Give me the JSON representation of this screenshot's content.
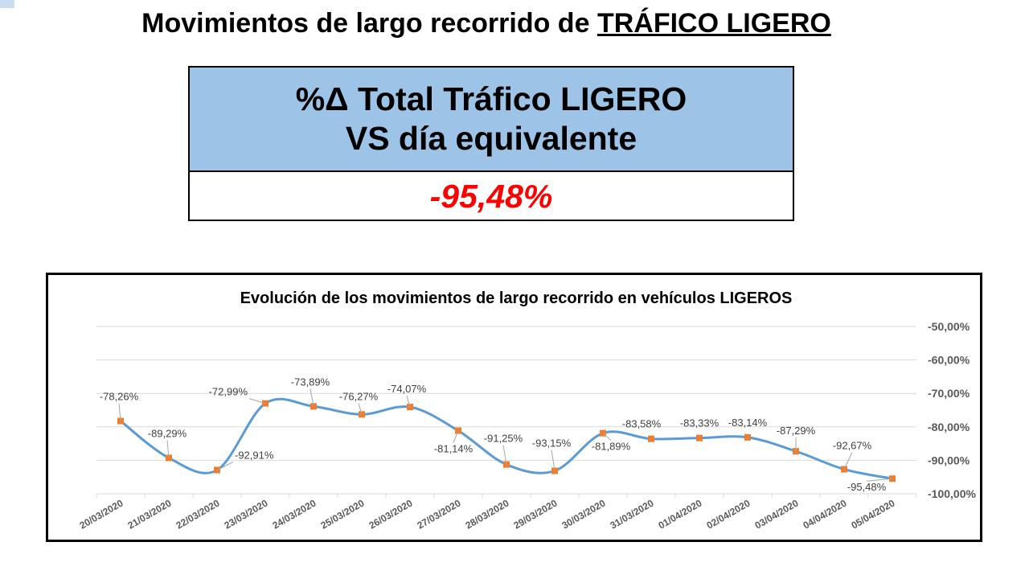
{
  "header": {
    "title_prefix": "Movimientos de largo recorrido de ",
    "title_emph": "TRÁFICO LIGERO"
  },
  "kpi": {
    "label_line1": "%Δ Total Tráfico LIGERO",
    "label_line2": "VS día equivalente",
    "value": "-95,48%",
    "header_color": "#9dc3e6",
    "value_color": "#ff0000"
  },
  "chart_data": {
    "type": "line",
    "title": "Evolución de los movimientos de largo recorrido en vehículos LIGEROS",
    "categories": [
      "20/03/2020",
      "21/03/2020",
      "22/03/2020",
      "23/03/2020",
      "24/03/2020",
      "25/03/2020",
      "26/03/2020",
      "27/03/2020",
      "28/03/2020",
      "29/03/2020",
      "30/03/2020",
      "31/03/2020",
      "01/04/2020",
      "02/04/2020",
      "03/04/2020",
      "04/04/2020",
      "05/04/2020"
    ],
    "series": [
      {
        "values": [
          -78.26,
          -89.29,
          -92.91,
          -72.99,
          -73.89,
          -76.27,
          -74.07,
          -81.14,
          -91.25,
          -93.15,
          -81.89,
          -83.58,
          -83.33,
          -83.14,
          -87.29,
          -92.67,
          -95.48
        ],
        "labels": [
          "-78,26%",
          "-89,29%",
          "-92,91%",
          "-72,99%",
          "-73,89%",
          "-76,27%",
          "-74,07%",
          "-81,14%",
          "-91,25%",
          "-93,15%",
          "-81,89%",
          "-83,58%",
          "-83,33%",
          "-83,14%",
          "-87,29%",
          "-92,67%",
          "-95,48%"
        ],
        "line_color": "#5b9bd5",
        "marker_color": "#ed7d31"
      }
    ],
    "ylim": [
      -100,
      -50
    ],
    "yticks": [
      -50,
      -60,
      -70,
      -80,
      -90,
      -100
    ],
    "ytick_labels": [
      "-50,00%",
      "-60,00%",
      "-70,00%",
      "-80,00%",
      "-90,00%",
      "-100,00%"
    ],
    "y_axis_side": "right",
    "grid": true,
    "smooth": true
  }
}
